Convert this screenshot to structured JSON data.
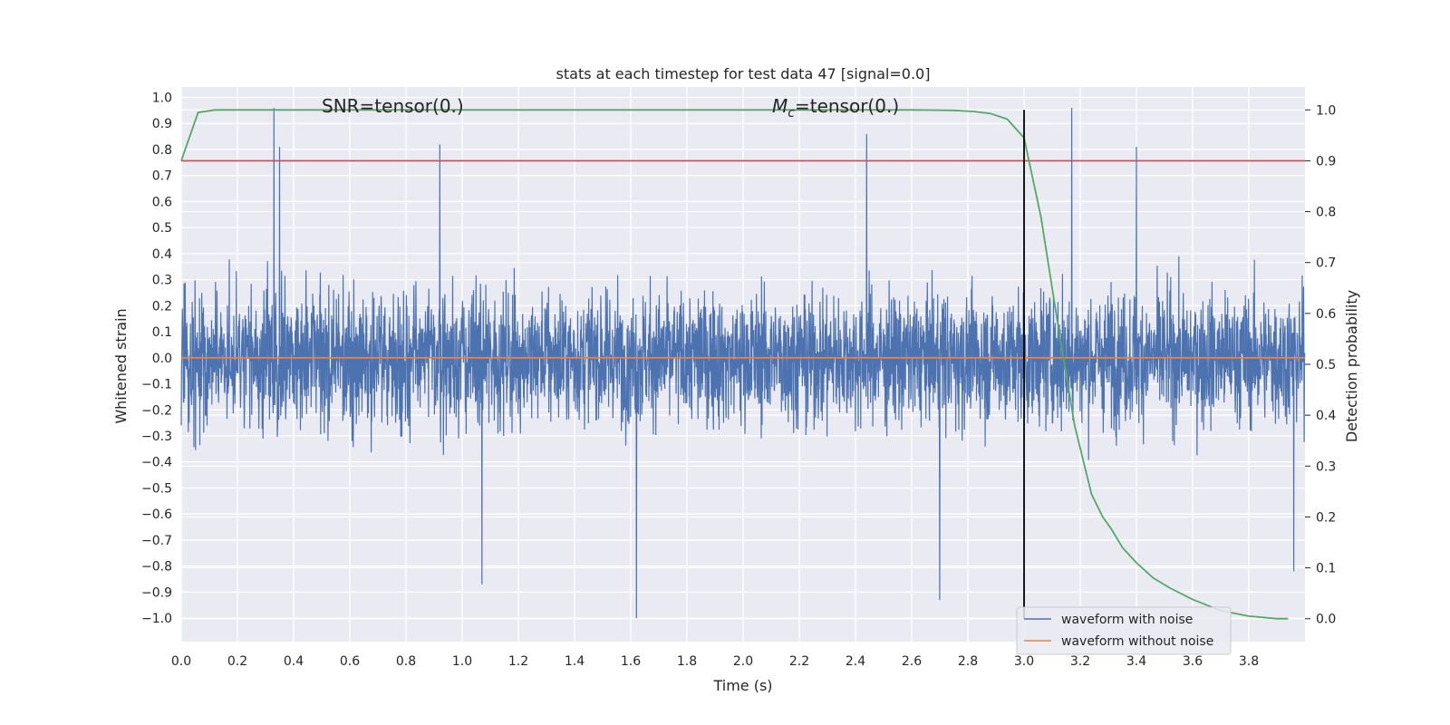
{
  "chart_data": {
    "type": "line",
    "title": "stats at each timestep for test data 47 [signal=0.0]",
    "xlabel": "Time (s)",
    "ylabel": "Whitened strain",
    "y2label": "Detection probability",
    "xlim": [
      0.0,
      4.0
    ],
    "ylim": [
      -1.09,
      1.04
    ],
    "y2lim": [
      -0.045,
      1.045
    ],
    "x_ticks": [
      "0.0",
      "0.2",
      "0.4",
      "0.6",
      "0.8",
      "1.0",
      "1.2",
      "1.4",
      "1.6",
      "1.8",
      "2.0",
      "2.2",
      "2.4",
      "2.6",
      "2.8",
      "3.0",
      "3.2",
      "3.4",
      "3.6",
      "3.8"
    ],
    "y_ticks": [
      "1.0",
      "0.9",
      "0.8",
      "0.7",
      "0.6",
      "0.5",
      "0.4",
      "0.3",
      "0.2",
      "0.1",
      "0.0",
      "−0.1",
      "−0.2",
      "−0.3",
      "−0.4",
      "−0.5",
      "−0.6",
      "−0.7",
      "−0.8",
      "−0.9",
      "−1.0"
    ],
    "y2_ticks": [
      "1.0",
      "0.9",
      "0.8",
      "0.7",
      "0.6",
      "0.5",
      "0.4",
      "0.3",
      "0.2",
      "0.1",
      "0.0"
    ],
    "grid": true,
    "legend_position": "lower-right",
    "annotations": {
      "snr": "SNR=tensor(0.)",
      "mc_symbol": "M",
      "mc_subscript": "c",
      "mc_value": "=tensor(0.)"
    },
    "series": [
      {
        "name": "waveform with noise",
        "color": "#4c72b0",
        "axis": "left",
        "style": "dense noise, approx. range -1.0 to 0.96",
        "notable_peaks": [
          {
            "x": 0.33,
            "y": 0.96
          },
          {
            "x": 0.35,
            "y": 0.81
          },
          {
            "x": 0.92,
            "y": 0.82
          },
          {
            "x": 1.62,
            "y": -1.0
          },
          {
            "x": 1.07,
            "y": -0.87
          },
          {
            "x": 2.44,
            "y": 0.86
          },
          {
            "x": 2.7,
            "y": -0.93
          },
          {
            "x": 3.17,
            "y": 0.96
          },
          {
            "x": 3.4,
            "y": 0.81
          },
          {
            "x": 3.96,
            "y": -0.82
          }
        ]
      },
      {
        "name": "waveform without noise",
        "color": "#dd8452",
        "axis": "left",
        "x": [
          0.0,
          4.0
        ],
        "y": [
          0.0,
          0.0
        ]
      },
      {
        "color": "#55a868",
        "axis": "right",
        "x": [
          0.0,
          0.06,
          0.12,
          0.2,
          0.5,
          1.0,
          2.0,
          2.6,
          2.75,
          2.82,
          2.88,
          2.94,
          3.0,
          3.06,
          3.12,
          3.18,
          3.24,
          3.28,
          3.31,
          3.35,
          3.4,
          3.46,
          3.52,
          3.6,
          3.7,
          3.8,
          3.9,
          3.94
        ],
        "y": [
          0.9,
          0.995,
          1.0,
          1.0,
          1.0,
          1.0,
          1.0,
          1.0,
          0.999,
          0.997,
          0.993,
          0.982,
          0.945,
          0.79,
          0.58,
          0.38,
          0.245,
          0.2,
          0.177,
          0.14,
          0.11,
          0.08,
          0.06,
          0.038,
          0.016,
          0.005,
          0.0,
          0.0
        ]
      }
    ],
    "threshold_line": {
      "value": 0.9,
      "axis": "right",
      "color": "#c44e52"
    },
    "vertical_line": {
      "x": 3.0,
      "color": "#000000"
    }
  }
}
